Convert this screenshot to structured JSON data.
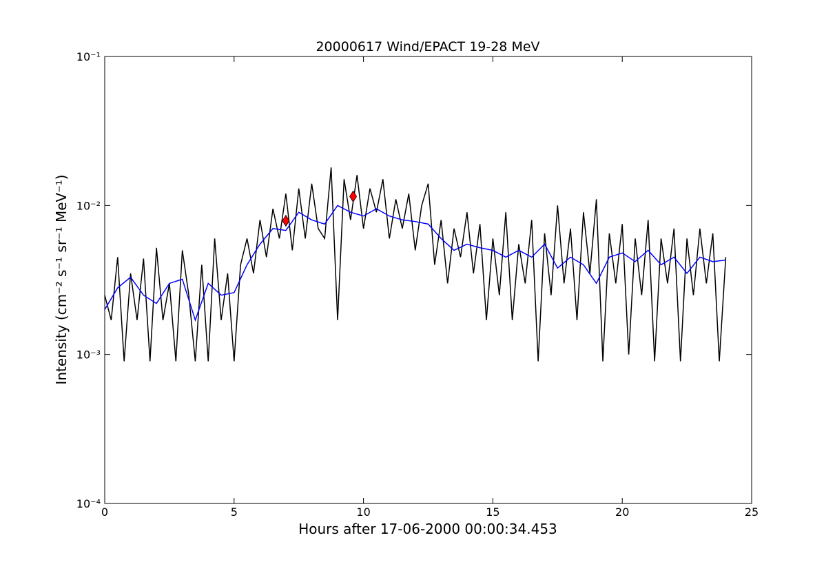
{
  "chart_data": {
    "type": "line",
    "title": "20000617 Wind/EPACT 19-28 MeV",
    "x_label": "Hours after 17-06-2000 00:00:34.453",
    "y_label": "Intensity (cm⁻² s⁻¹ sr⁻¹ MeV⁻¹)",
    "xlim": [
      0,
      25
    ],
    "xticks": [
      0,
      5,
      10,
      15,
      20,
      25
    ],
    "ylim": [
      0.0001,
      0.1
    ],
    "yscale": "log",
    "yticks": [
      {
        "value": 0.0001,
        "label": "10⁻⁴"
      },
      {
        "value": 0.001,
        "label": "10⁻³"
      },
      {
        "value": 0.01,
        "label": "10⁻²"
      },
      {
        "value": 0.1,
        "label": "10⁻¹"
      }
    ],
    "series": [
      {
        "color": "#000000",
        "x": [
          0,
          0.25,
          0.5,
          0.75,
          1,
          1.25,
          1.5,
          1.75,
          2,
          2.25,
          2.5,
          2.75,
          3,
          3.25,
          3.5,
          3.75,
          4,
          4.25,
          4.5,
          4.75,
          5,
          5.25,
          5.5,
          5.75,
          6,
          6.25,
          6.5,
          6.75,
          7,
          7.25,
          7.5,
          7.75,
          8,
          8.25,
          8.5,
          8.75,
          9,
          9.25,
          9.5,
          9.75,
          10,
          10.25,
          10.5,
          10.75,
          11,
          11.25,
          11.5,
          11.75,
          12,
          12.25,
          12.5,
          12.75,
          13,
          13.25,
          13.5,
          13.75,
          14,
          14.25,
          14.5,
          14.75,
          15,
          15.25,
          15.5,
          15.75,
          16,
          16.25,
          16.5,
          16.75,
          17,
          17.25,
          17.5,
          17.75,
          18,
          18.25,
          18.5,
          18.75,
          19,
          19.25,
          19.5,
          19.75,
          20,
          20.25,
          20.5,
          20.75,
          21,
          21.25,
          21.5,
          21.75,
          22,
          22.25,
          22.5,
          22.75,
          23,
          23.25,
          23.5,
          23.75,
          24
        ],
        "values": [
          0.0025,
          0.0017,
          0.0045,
          0.0009,
          0.0035,
          0.0017,
          0.0044,
          0.0009,
          0.0052,
          0.0017,
          0.003,
          0.0009,
          0.005,
          0.0025,
          0.0009,
          0.004,
          0.0009,
          0.006,
          0.0017,
          0.0035,
          0.0009,
          0.004,
          0.006,
          0.0035,
          0.008,
          0.0045,
          0.0095,
          0.006,
          0.012,
          0.005,
          0.013,
          0.006,
          0.014,
          0.007,
          0.006,
          0.018,
          0.0017,
          0.015,
          0.008,
          0.016,
          0.007,
          0.013,
          0.009,
          0.015,
          0.006,
          0.011,
          0.007,
          0.012,
          0.005,
          0.01,
          0.014,
          0.004,
          0.008,
          0.003,
          0.007,
          0.0045,
          0.009,
          0.0035,
          0.0075,
          0.0017,
          0.006,
          0.0025,
          0.009,
          0.0017,
          0.0055,
          0.003,
          0.008,
          0.0009,
          0.0065,
          0.0025,
          0.01,
          0.003,
          0.007,
          0.0017,
          0.009,
          0.0035,
          0.011,
          0.0009,
          0.0065,
          0.003,
          0.0075,
          0.001,
          0.006,
          0.0025,
          0.008,
          0.0009,
          0.006,
          0.003,
          0.007,
          0.0009,
          0.006,
          0.0025,
          0.007,
          0.003,
          0.0065,
          0.0009,
          0.0045
        ]
      },
      {
        "color": "#0000ff",
        "x": [
          0,
          0.5,
          1,
          1.5,
          2,
          2.5,
          3,
          3.5,
          4,
          4.5,
          5,
          5.5,
          6,
          6.5,
          7,
          7.5,
          8,
          8.5,
          9,
          9.5,
          10,
          10.5,
          11,
          11.5,
          12,
          12.5,
          13,
          13.5,
          14,
          14.5,
          15,
          15.5,
          16,
          16.5,
          17,
          17.5,
          18,
          18.5,
          19,
          19.5,
          20,
          20.5,
          21,
          21.5,
          22,
          22.5,
          23,
          23.5,
          24
        ],
        "values": [
          0.002,
          0.0028,
          0.0033,
          0.0025,
          0.0022,
          0.003,
          0.0032,
          0.0017,
          0.003,
          0.0025,
          0.0026,
          0.004,
          0.0055,
          0.007,
          0.0068,
          0.009,
          0.008,
          0.0075,
          0.01,
          0.009,
          0.0085,
          0.0095,
          0.0085,
          0.008,
          0.0078,
          0.0075,
          0.006,
          0.005,
          0.0055,
          0.0052,
          0.005,
          0.0045,
          0.005,
          0.0045,
          0.0055,
          0.0038,
          0.0045,
          0.004,
          0.003,
          0.0045,
          0.0048,
          0.0042,
          0.005,
          0.004,
          0.0045,
          0.0035,
          0.0045,
          0.0042,
          0.0043
        ]
      }
    ],
    "markers": {
      "color": "#ff0000",
      "x": [
        7.0,
        9.6
      ],
      "values": [
        0.0079,
        0.0115
      ]
    }
  }
}
